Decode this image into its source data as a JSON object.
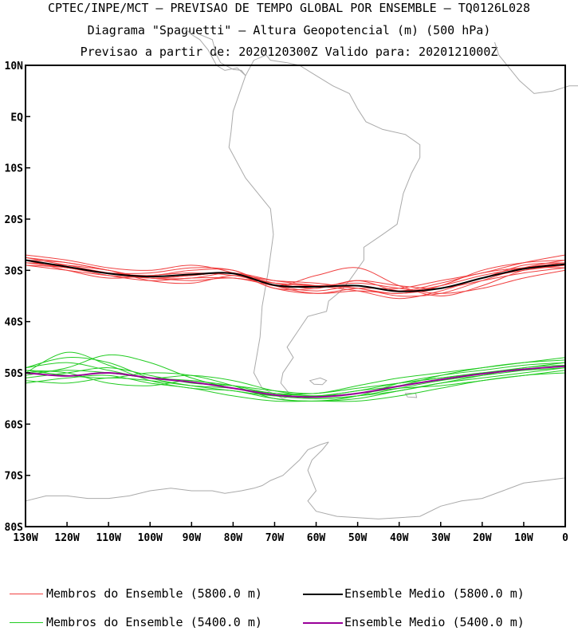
{
  "header": {
    "line1": "CPTEC/INPE/MCT — PREVISAO DE TEMPO GLOBAL POR ENSEMBLE — TQ0126L028",
    "line2": "Diagrama \"Spaguetti\" — Altura Geopotencial (m) (500 hPa)",
    "line3": "Previsao a partir de: 2020120300Z  Valido para: 2020121000Z"
  },
  "colors": {
    "member_5800": "#f04040",
    "mean_5800": "#000000",
    "member_5400": "#22cc22",
    "mean_5400": "#990099",
    "coast": "#aaaaaa",
    "frame": "#000000"
  },
  "chart_data": {
    "type": "line",
    "xlim": [
      -130,
      0
    ],
    "ylim": [
      -80,
      10
    ],
    "x_ticks": [
      {
        "value": -130,
        "label": "130W"
      },
      {
        "value": -120,
        "label": "120W"
      },
      {
        "value": -110,
        "label": "110W"
      },
      {
        "value": -100,
        "label": "100W"
      },
      {
        "value": -90,
        "label": "90W"
      },
      {
        "value": -80,
        "label": "80W"
      },
      {
        "value": -70,
        "label": "70W"
      },
      {
        "value": -60,
        "label": "60W"
      },
      {
        "value": -50,
        "label": "50W"
      },
      {
        "value": -40,
        "label": "40W"
      },
      {
        "value": -30,
        "label": "30W"
      },
      {
        "value": -20,
        "label": "20W"
      },
      {
        "value": -10,
        "label": "10W"
      },
      {
        "value": 0,
        "label": "0"
      }
    ],
    "y_ticks": [
      {
        "value": 10,
        "label": "10N"
      },
      {
        "value": 0,
        "label": "EQ"
      },
      {
        "value": -10,
        "label": "10S"
      },
      {
        "value": -20,
        "label": "20S"
      },
      {
        "value": -30,
        "label": "30S"
      },
      {
        "value": -40,
        "label": "40S"
      },
      {
        "value": -50,
        "label": "50S"
      },
      {
        "value": -60,
        "label": "60S"
      },
      {
        "value": -70,
        "label": "70S"
      },
      {
        "value": -80,
        "label": "80S"
      }
    ],
    "x": [
      -130,
      -120,
      -110,
      -100,
      -90,
      -80,
      -70,
      -60,
      -50,
      -40,
      -30,
      -20,
      -10,
      0
    ],
    "groups": [
      {
        "name": "Membros do Ensemble (5800.0 m)",
        "level": 5800,
        "color": "#f04040",
        "members": [
          [
            -27.5,
            -29.0,
            -30.5,
            -31.5,
            -31.0,
            -30.5,
            -32.5,
            -33.5,
            -32.0,
            -34.0,
            -33.0,
            -31.0,
            -29.5,
            -28.5
          ],
          [
            -28.0,
            -29.5,
            -30.5,
            -31.0,
            -30.0,
            -30.0,
            -33.0,
            -31.0,
            -29.5,
            -33.0,
            -35.0,
            -33.0,
            -30.0,
            -29.0
          ],
          [
            -29.0,
            -30.0,
            -31.0,
            -31.5,
            -32.0,
            -31.5,
            -33.0,
            -34.0,
            -33.0,
            -34.0,
            -32.5,
            -30.5,
            -29.5,
            -29.5
          ],
          [
            -27.0,
            -28.0,
            -29.5,
            -30.0,
            -29.0,
            -30.5,
            -33.5,
            -34.5,
            -33.5,
            -33.5,
            -32.0,
            -30.5,
            -28.5,
            -27.0
          ],
          [
            -28.5,
            -29.0,
            -30.0,
            -31.5,
            -31.5,
            -30.5,
            -32.0,
            -33.0,
            -34.0,
            -35.5,
            -34.0,
            -31.5,
            -30.0,
            -29.0
          ],
          [
            -28.0,
            -30.0,
            -31.5,
            -31.0,
            -30.5,
            -31.0,
            -32.5,
            -33.0,
            -32.5,
            -33.5,
            -34.5,
            -33.5,
            -31.5,
            -30.0
          ],
          [
            -27.5,
            -28.5,
            -30.0,
            -32.0,
            -32.5,
            -31.0,
            -32.0,
            -32.5,
            -33.5,
            -34.5,
            -33.0,
            -30.0,
            -28.5,
            -28.0
          ],
          [
            -28.5,
            -29.5,
            -30.5,
            -30.5,
            -29.5,
            -30.0,
            -33.0,
            -34.5,
            -34.0,
            -34.5,
            -33.5,
            -31.5,
            -29.0,
            -28.5
          ],
          [
            -28.0,
            -28.5,
            -30.0,
            -31.5,
            -31.0,
            -30.5,
            -33.5,
            -33.5,
            -32.0,
            -33.0,
            -33.5,
            -32.0,
            -30.5,
            -29.5
          ],
          [
            -29.0,
            -29.5,
            -31.0,
            -32.0,
            -31.5,
            -31.5,
            -32.5,
            -33.0,
            -33.5,
            -35.0,
            -34.5,
            -32.0,
            -29.5,
            -28.0
          ]
        ],
        "mean": {
          "name": "Ensemble Medio (5800.0 m)",
          "color": "#000000",
          "values": [
            -28.0,
            -29.3,
            -30.6,
            -31.2,
            -30.8,
            -30.6,
            -32.9,
            -33.2,
            -33.0,
            -34.1,
            -33.5,
            -31.5,
            -29.7,
            -28.8
          ]
        }
      },
      {
        "name": "Membros do Ensemble (5400.0 m)",
        "level": 5400,
        "color": "#22cc22",
        "members": [
          [
            -49.0,
            -47.0,
            -48.0,
            -51.0,
            -52.5,
            -53.5,
            -54.5,
            -54.5,
            -53.5,
            -52.0,
            -51.0,
            -50.0,
            -49.0,
            -48.0
          ],
          [
            -50.5,
            -49.0,
            -46.5,
            -48.0,
            -51.0,
            -53.0,
            -54.0,
            -55.0,
            -54.5,
            -53.0,
            -51.5,
            -50.5,
            -49.5,
            -48.5
          ],
          [
            -51.0,
            -50.0,
            -49.0,
            -50.5,
            -52.0,
            -52.5,
            -53.5,
            -54.0,
            -52.5,
            -51.0,
            -50.0,
            -49.0,
            -48.0,
            -47.0
          ],
          [
            -49.5,
            -50.5,
            -51.0,
            -50.0,
            -50.5,
            -52.5,
            -55.0,
            -55.5,
            -55.0,
            -53.5,
            -52.0,
            -51.0,
            -50.0,
            -49.0
          ],
          [
            -51.5,
            -52.0,
            -51.0,
            -51.5,
            -52.5,
            -53.0,
            -54.0,
            -54.5,
            -54.0,
            -53.0,
            -52.5,
            -51.5,
            -50.5,
            -49.5
          ],
          [
            -49.0,
            -48.0,
            -49.5,
            -51.0,
            -50.5,
            -51.5,
            -53.5,
            -54.5,
            -53.5,
            -52.5,
            -50.5,
            -49.0,
            -48.0,
            -47.5
          ],
          [
            -50.0,
            -46.0,
            -48.5,
            -51.5,
            -53.0,
            -53.5,
            -55.0,
            -55.5,
            -54.5,
            -52.0,
            -50.5,
            -49.5,
            -48.5,
            -48.0
          ],
          [
            -52.0,
            -51.0,
            -50.5,
            -52.0,
            -53.0,
            -54.5,
            -55.5,
            -55.5,
            -55.5,
            -54.5,
            -53.0,
            -51.5,
            -50.5,
            -50.0
          ],
          [
            -50.0,
            -49.5,
            -50.0,
            -51.0,
            -51.5,
            -52.5,
            -54.0,
            -54.0,
            -53.0,
            -52.0,
            -51.0,
            -50.0,
            -49.5,
            -49.0
          ],
          [
            -49.5,
            -50.0,
            -52.0,
            -52.5,
            -51.5,
            -53.0,
            -54.5,
            -55.0,
            -54.5,
            -53.5,
            -52.0,
            -50.5,
            -49.0,
            -48.5
          ]
        ],
        "mean": {
          "name": "Ensemble Medio (5400.0 m)",
          "color": "#990099",
          "values": [
            -50.0,
            -50.6,
            -50.0,
            -51.0,
            -51.8,
            -53.0,
            -54.3,
            -54.7,
            -54.0,
            -52.6,
            -51.3,
            -50.2,
            -49.3,
            -48.7
          ]
        }
      }
    ]
  },
  "legend": [
    {
      "label": "Membros do Ensemble (5800.0 m)",
      "color": "#f04040"
    },
    {
      "label": "Ensemble Medio (5800.0 m)",
      "color": "#000000"
    },
    {
      "label": "Membros do Ensemble (5400.0 m)",
      "color": "#22cc22"
    },
    {
      "label": "Ensemble Medio (5400.0 m)",
      "color": "#990099"
    }
  ]
}
